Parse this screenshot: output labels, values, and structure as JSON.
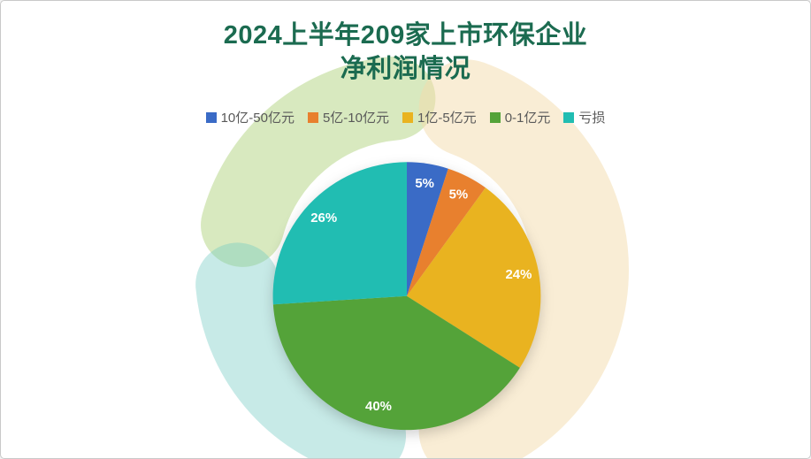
{
  "slide": {
    "title_lines": [
      "2024上半年209家上市环保企业",
      "净利润情况"
    ],
    "title_color": "#1B6B50"
  },
  "chart_data": {
    "type": "pie",
    "title": "2024上半年209家上市环保企业净利润情况",
    "categories": [
      "10亿-50亿元",
      "5亿-10亿元",
      "1亿-5亿元",
      "0-1亿元",
      "亏损"
    ],
    "values": [
      5,
      5,
      24,
      40,
      26
    ],
    "labels": [
      "5%",
      "5%",
      "24%",
      "40%",
      "26%"
    ],
    "colors": [
      "#3A6BC6",
      "#E8802E",
      "#E9B320",
      "#54A339",
      "#21BDB2"
    ],
    "label_color": "#ffffff",
    "legend_text_color": "#595959",
    "start_angle_deg": 0,
    "direction": "clockwise",
    "legend_position": "top",
    "unit": "percent"
  }
}
